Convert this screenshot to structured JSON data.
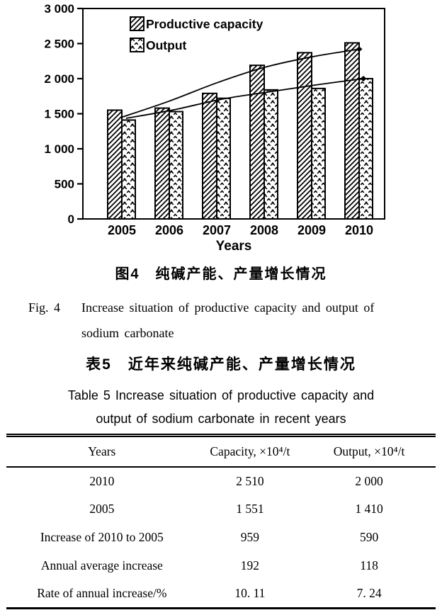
{
  "page": {
    "background": "#ffffff",
    "ink": "#000000"
  },
  "figure": {
    "caption_cn": "图4　纯碱产能、产量增长情况",
    "caption_en_label": "Fig. 4",
    "caption_en_lines": [
      "Increase situation of productive capacity and output of",
      "sodium carbonate"
    ]
  },
  "table_section": {
    "caption_cn": "表5　近年来纯碱产能、产量增长情况",
    "caption_en_lines": [
      "Table 5   Increase situation of productive capacity and",
      "output of sodium carbonate in recent years"
    ],
    "table": {
      "headers": [
        "Years",
        "Capacity, ×10⁴/t",
        "Output, ×10⁴/t"
      ],
      "rows": [
        [
          "2010",
          "2 510",
          "2 000"
        ],
        [
          "2005",
          "1 551",
          "1 410"
        ],
        [
          "Increase of 2010 to 2005",
          "959",
          "590"
        ],
        [
          "Annual average increase",
          "192",
          "118"
        ],
        [
          "Rate of annual increase/%",
          "10. 11",
          "7. 24"
        ]
      ]
    }
  },
  "chart_data": {
    "type": "bar",
    "title": "",
    "categories": [
      "2005",
      "2006",
      "2007",
      "2008",
      "2009",
      "2010"
    ],
    "series": [
      {
        "name": "Productive capacity",
        "hatch": "diagonal",
        "values": [
          1551,
          1580,
          1790,
          2190,
          2370,
          2510
        ]
      },
      {
        "name": "Output",
        "hatch": "crosshatch",
        "values": [
          1410,
          1530,
          1720,
          1840,
          1860,
          2000
        ]
      }
    ],
    "trend_lines": [
      {
        "series": "Productive capacity",
        "values_at_years": [
          1450,
          1680,
          1940,
          2160,
          2310,
          2420
        ]
      },
      {
        "series": "Output",
        "values_at_years": [
          1435,
          1555,
          1705,
          1810,
          1910,
          2000
        ]
      }
    ],
    "xlabel": "Years",
    "ylabel": "",
    "ylim": [
      0,
      3000
    ],
    "yticks": [
      0,
      500,
      1000,
      1500,
      2000,
      2500,
      3000
    ],
    "ytick_labels": [
      "0",
      "500",
      "1 000",
      "1 500",
      "2 000",
      "2 500",
      "3 000"
    ],
    "legend": {
      "position": "top-left-inside",
      "entries": [
        "Productive capacity",
        "Output"
      ]
    },
    "grid": false,
    "colors": {
      "ink": "#000000",
      "background": "#ffffff"
    }
  }
}
